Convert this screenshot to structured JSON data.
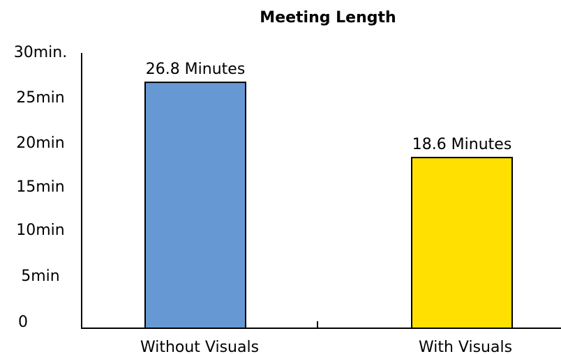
{
  "chart_data": {
    "type": "bar",
    "title": "Meeting Length",
    "xlabel": "",
    "ylabel": "",
    "categories": [
      "Without Visuals",
      "With Visuals"
    ],
    "values": [
      26.8,
      18.6
    ],
    "data_labels": [
      "26.8 Minutes",
      "18.6 Minutes"
    ],
    "bar_colors": [
      "#6699d4",
      "#ffe000"
    ],
    "y_ticks": [
      0,
      5,
      10,
      15,
      20,
      25,
      30
    ],
    "y_tick_labels": [
      "0",
      "5min",
      "10min",
      "15min",
      "20min",
      "25min",
      "30min."
    ],
    "ylim": [
      0,
      30
    ],
    "grid": false,
    "legend": "none"
  }
}
